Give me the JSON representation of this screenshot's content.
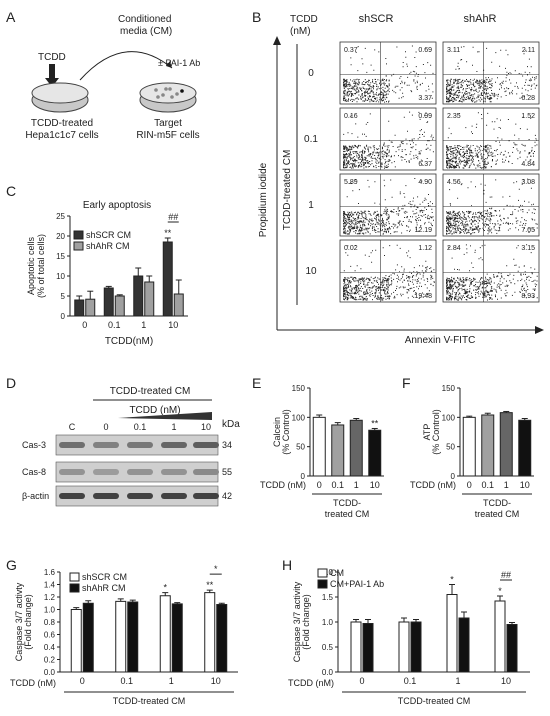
{
  "panel_letters": {
    "A": "A",
    "B": "B",
    "C": "C",
    "D": "D",
    "E": "E",
    "F": "F",
    "G": "G",
    "H": "H"
  },
  "panelA": {
    "cm_line1": "Conditioned",
    "cm_line2": "media (CM)",
    "antibody": "± PAI-1 Ab",
    "tcdd": "TCDD",
    "src1": "TCDD-treated",
    "src2": "Hepa1c1c7 cells",
    "tgt1": "Target",
    "tgt2": "RIN-m5F cells"
  },
  "panelB": {
    "tcdd_header1": "TCDD",
    "tcdd_header2": "(nM)",
    "col_labels": [
      "shSCR",
      "shAhR"
    ],
    "row_labels": [
      "0",
      "0.1",
      "1",
      "10"
    ],
    "ylabel": "Propidium iodide",
    "side_label": "TCDD-treated CM",
    "xlabel": "Annexin V-FITC",
    "quadrants": [
      [
        {
          "ul": "0.37",
          "ur": "0.69",
          "lr": "3.37"
        },
        {
          "ul": "3.11",
          "ur": "2.11",
          "lr": "6.28"
        }
      ],
      [
        {
          "ul": "0.16",
          "ur": "0.99",
          "lr": "6.37"
        },
        {
          "ul": "2.35",
          "ur": "1.52",
          "lr": "4.84"
        }
      ],
      [
        {
          "ul": "5.89",
          "ur": "4.90",
          "lr": "12.19"
        },
        {
          "ul": "4.56",
          "ur": "3.08",
          "lr": "7.05"
        }
      ],
      [
        {
          "ul": "0.02",
          "ur": "1.12",
          "lr": "19.48"
        },
        {
          "ul": "2.84",
          "ur": "3.15",
          "lr": "8.93"
        }
      ]
    ]
  },
  "panelD": {
    "header": "TCDD-treated CM",
    "tcdd": "TCDD (nM)",
    "lanes": [
      "C",
      "0",
      "0.1",
      "1",
      "10"
    ],
    "kda": "kDa",
    "bands": [
      {
        "name": "Cas-3",
        "kda": "34",
        "intensity": [
          0.55,
          0.45,
          0.5,
          0.6,
          0.65
        ]
      },
      {
        "name": "Cas-8",
        "kda": "55",
        "intensity": [
          0.35,
          0.3,
          0.35,
          0.35,
          0.4
        ]
      },
      {
        "name": "β-actin",
        "kda": "42",
        "intensity": [
          0.8,
          0.8,
          0.8,
          0.8,
          0.8
        ]
      }
    ]
  },
  "tcdd_label": "TCDD (nM)",
  "treated_line1": "TCDD-",
  "treated_line2": "treated CM",
  "treated_cm": "TCDD-treated CM",
  "chart_data": [
    {
      "id": "C",
      "type": "bar",
      "title": "Early apoptosis",
      "ylabel_1": "Apoptotic cells",
      "ylabel_2": "(% of total cells)",
      "xlabel": "TCDD(nM)",
      "categories": [
        "0",
        "0.1",
        "1",
        "10"
      ],
      "ylim": [
        0,
        25
      ],
      "yticks": [
        "0",
        "5",
        "10",
        "15",
        "20",
        "25"
      ],
      "series": [
        {
          "name": "shSCR CM",
          "color": "#333333",
          "values": [
            4,
            7,
            10,
            18.5
          ],
          "err": [
            1,
            0.4,
            2,
            1
          ]
        },
        {
          "name": "shAhR CM",
          "color": "#a0a0a0",
          "values": [
            4.2,
            5,
            8.5,
            5.5
          ],
          "err": [
            2,
            0.3,
            1.5,
            3.5
          ]
        }
      ],
      "annotations": [
        "**",
        "##"
      ]
    },
    {
      "id": "E",
      "type": "bar",
      "ylabel_1": "Calcein",
      "ylabel_2": "(% Control)",
      "categories": [
        "0",
        "0.1",
        "1",
        "10"
      ],
      "ylim": [
        0,
        150
      ],
      "yticks": [
        "0",
        "50",
        "100",
        "150"
      ],
      "colors": [
        "#ffffff",
        "#a0a0a0",
        "#666666",
        "#111111"
      ],
      "values": [
        100,
        87,
        95,
        78
      ],
      "err": [
        4,
        4,
        3,
        3
      ],
      "annotations": [
        "**"
      ]
    },
    {
      "id": "F",
      "type": "bar",
      "ylabel_1": "ATP",
      "ylabel_2": "(% Control)",
      "categories": [
        "0",
        "0.1",
        "1",
        "10"
      ],
      "ylim": [
        0,
        150
      ],
      "yticks": [
        "0",
        "50",
        "100",
        "150"
      ],
      "colors": [
        "#ffffff",
        "#a0a0a0",
        "#666666",
        "#111111"
      ],
      "values": [
        100,
        104,
        108,
        95
      ],
      "err": [
        2,
        3,
        2,
        3
      ]
    },
    {
      "id": "G",
      "type": "bar",
      "ylabel_1": "Caspase 3/7 activty",
      "ylabel_2": "(Fold change)",
      "categories": [
        "0",
        "0.1",
        "1",
        "10"
      ],
      "ylim": [
        0,
        1.6
      ],
      "yticks": [
        "0.0",
        "0.2",
        "0.4",
        "0.6",
        "0.8",
        "1.0",
        "1.2",
        "1.4",
        "1.6"
      ],
      "series": [
        {
          "name": "shSCR CM",
          "color": "#ffffff",
          "values": [
            1.0,
            1.13,
            1.22,
            1.27
          ],
          "err": [
            0.03,
            0.04,
            0.05,
            0.04
          ]
        },
        {
          "name": "shAhR CM",
          "color": "#111111",
          "values": [
            1.1,
            1.12,
            1.09,
            1.08
          ],
          "err": [
            0.04,
            0.03,
            0.02,
            0.02
          ]
        }
      ],
      "annotations": [
        "*",
        "**",
        "*",
        "#"
      ]
    },
    {
      "id": "H",
      "type": "bar",
      "ylabel_1": "Caspase 3/7 activity",
      "ylabel_2": "(Fold change)",
      "categories": [
        "0",
        "0.1",
        "1",
        "10"
      ],
      "ylim": [
        0,
        2.0
      ],
      "yticks": [
        "0.0",
        "0.5",
        "1.0",
        "1.5",
        "2.0"
      ],
      "series": [
        {
          "name": "CM",
          "color": "#ffffff",
          "values": [
            1.0,
            1.0,
            1.55,
            1.42
          ],
          "err": [
            0.05,
            0.08,
            0.2,
            0.1
          ]
        },
        {
          "name": "CM+PAI-1 Ab",
          "color": "#111111",
          "values": [
            0.97,
            1.0,
            1.08,
            0.95
          ],
          "err": [
            0.08,
            0.05,
            0.12,
            0.04
          ]
        }
      ],
      "annotations": [
        "*",
        "*",
        "##"
      ]
    }
  ]
}
